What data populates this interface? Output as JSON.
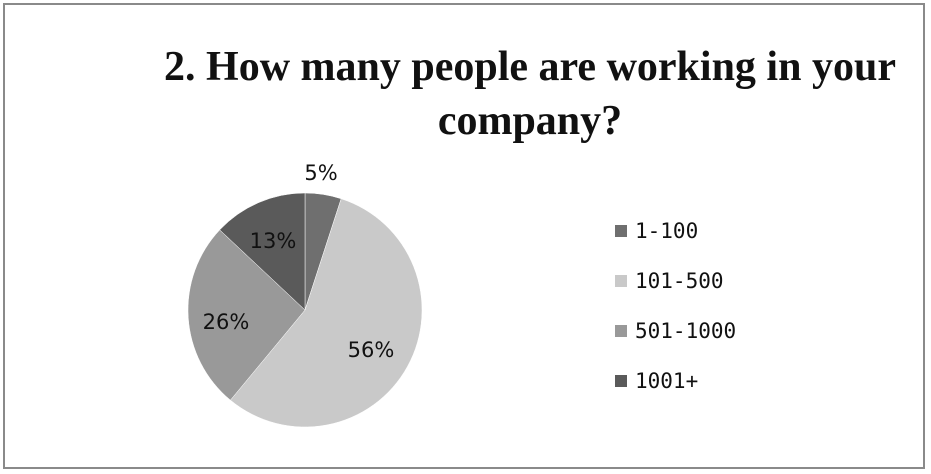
{
  "chart_data": {
    "type": "pie",
    "title": "2. How many people are working in your company?",
    "categories": [
      "1-100",
      "101-500",
      "501-1000",
      "1001+"
    ],
    "values": [
      5,
      56,
      26,
      13
    ],
    "data_labels": [
      "5%",
      "56%",
      "26%",
      "13%"
    ],
    "colors": [
      "#6f6f6f",
      "#c9c9c9",
      "#999999",
      "#5a5a5a"
    ],
    "legend_position": "right"
  }
}
